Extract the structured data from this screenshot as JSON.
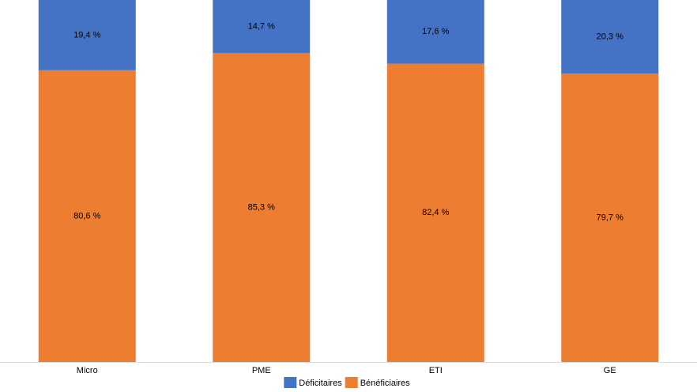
{
  "chart_data": {
    "type": "stacked_bar",
    "categories": [
      "Micro",
      "PME",
      "ETI",
      "GE"
    ],
    "ylim": [
      0,
      100
    ],
    "series": [
      {
        "name": "Bénéficiaires",
        "color": "#ed7d31",
        "values": [
          80.6,
          85.3,
          82.4,
          79.7
        ],
        "value_labels": [
          "80,6 %",
          "85,3 %",
          "82,4 %",
          "79,7 %"
        ]
      },
      {
        "name": "Déficitaires",
        "color": "#4472c4",
        "values": [
          19.4,
          14.7,
          17.6,
          20.3
        ],
        "value_labels": [
          "19,4 %",
          "14,7 %",
          "17,6 %",
          "20,3 %"
        ]
      }
    ],
    "legend": "bottom"
  }
}
